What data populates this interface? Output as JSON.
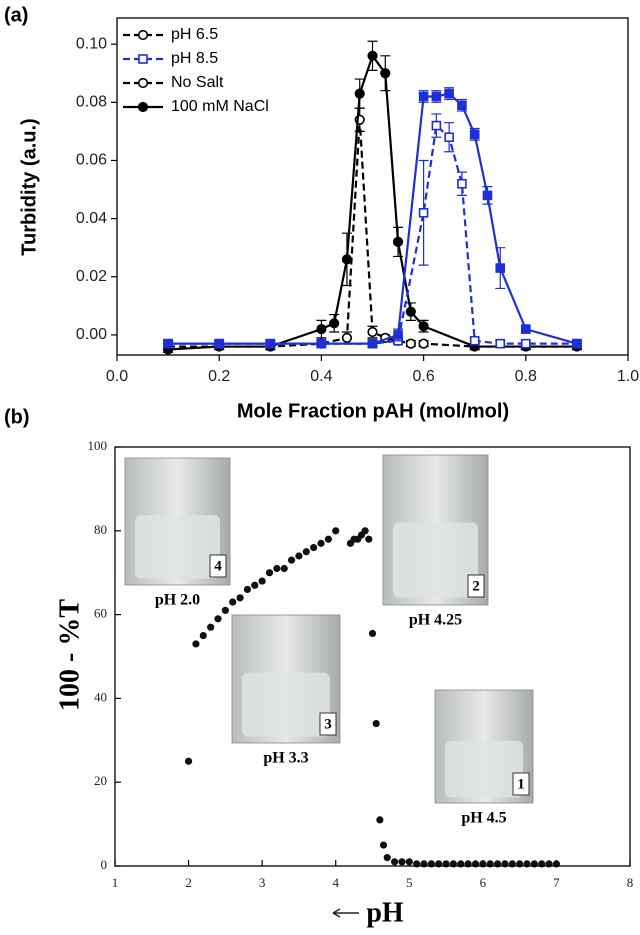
{
  "chart_data": [
    {
      "type": "line",
      "panel_label": "(a)",
      "x_label": "Mole Fraction pAH (mol/mol)",
      "y_label": "Turbidity (a.u.)",
      "xlim": [
        0,
        1
      ],
      "ylim": [
        -0.0069,
        0.109
      ],
      "xticks": [
        {
          "value": 0,
          "label": "0.0"
        },
        0.2,
        0.4,
        0.6,
        0.8,
        {
          "value": 1,
          "label": "1.0"
        }
      ],
      "yticks": [
        {
          "value": 0,
          "label": "0.00"
        },
        0.02,
        0.04,
        0.06,
        0.08,
        {
          "value": 0.1,
          "label": "0.10"
        }
      ],
      "legend": [
        {
          "name": "pH 6.5",
          "color": "#000000",
          "dash": true,
          "marker": "circle",
          "filled": false
        },
        {
          "name": "pH 8.5",
          "color": "#1f2fd6",
          "dash": true,
          "marker": "square",
          "filled": false
        },
        {
          "name": "No Salt",
          "color": "#000000",
          "dash": true,
          "marker": "circle",
          "filled": false
        },
        {
          "name": "100 mM NaCl",
          "color": "#000000",
          "dash": false,
          "marker": "circle",
          "filled": true
        }
      ],
      "series": [
        {
          "color": "#000000",
          "dash": true,
          "marker": "circle",
          "filled": false,
          "x": [
            0.1,
            0.2,
            0.3,
            0.4,
            0.45,
            0.475,
            0.5,
            0.525,
            0.55,
            0.575,
            0.6,
            0.7,
            0.8,
            0.9
          ],
          "values": [
            -0.004,
            -0.004,
            -0.004,
            -0.003,
            -0.001,
            0.074,
            0.001,
            -0.001,
            -0.002,
            -0.003,
            -0.003,
            -0.004,
            -0.004,
            -0.004
          ],
          "errors": [
            0.001,
            0.001,
            0.001,
            0.001,
            0.002,
            0.004,
            0.002,
            0.001,
            0.001,
            0.001,
            0.001,
            0.001,
            0.001,
            0.001
          ]
        },
        {
          "color": "#000000",
          "dash": false,
          "marker": "circle",
          "filled": true,
          "x": [
            0.1,
            0.2,
            0.3,
            0.4,
            0.425,
            0.45,
            0.475,
            0.5,
            0.525,
            0.55,
            0.575,
            0.6,
            0.7,
            0.8,
            0.9
          ],
          "values": [
            -0.005,
            -0.004,
            -0.004,
            0.002,
            0.004,
            0.026,
            0.083,
            0.096,
            0.09,
            0.032,
            0.008,
            0.003,
            -0.004,
            -0.004,
            -0.004
          ],
          "errors": [
            0.001,
            0.001,
            0.001,
            0.003,
            0.003,
            0.009,
            0.005,
            0.005,
            0.006,
            0.005,
            0.003,
            0.002,
            0.001,
            0.001,
            0.001
          ]
        },
        {
          "color": "#1f2fd6",
          "dash": true,
          "marker": "square",
          "filled": false,
          "x": [
            0.1,
            0.2,
            0.3,
            0.4,
            0.5,
            0.55,
            0.6,
            0.625,
            0.65,
            0.675,
            0.7,
            0.75,
            0.8,
            0.9
          ],
          "values": [
            -0.003,
            -0.003,
            -0.003,
            -0.003,
            -0.003,
            -0.002,
            0.042,
            0.072,
            0.068,
            0.052,
            -0.002,
            -0.003,
            -0.003,
            -0.003
          ],
          "errors": [
            0.001,
            0.001,
            0.001,
            0.001,
            0.001,
            0.001,
            0.018,
            0.004,
            0.005,
            0.004,
            0.001,
            0.001,
            0.001,
            0.001
          ]
        },
        {
          "color": "#1f2fd6",
          "dash": false,
          "marker": "square",
          "filled": true,
          "x": [
            0.1,
            0.2,
            0.3,
            0.4,
            0.5,
            0.55,
            0.6,
            0.625,
            0.65,
            0.675,
            0.7,
            0.725,
            0.75,
            0.8,
            0.9
          ],
          "values": [
            -0.003,
            -0.003,
            -0.003,
            -0.003,
            -0.003,
            0.0,
            0.082,
            0.082,
            0.083,
            0.079,
            0.069,
            0.048,
            0.023,
            0.002,
            -0.003
          ],
          "errors": [
            0.001,
            0.001,
            0.001,
            0.001,
            0.001,
            0.002,
            0.002,
            0.002,
            0.002,
            0.002,
            0.002,
            0.003,
            0.007,
            0.001,
            0.001
          ]
        }
      ]
    },
    {
      "type": "scatter",
      "panel_label": "(b)",
      "x_label": "pH",
      "y_label": "100 - %T",
      "xlim": [
        1,
        8
      ],
      "ylim": [
        0,
        100
      ],
      "xticks": [
        1,
        2,
        3,
        4,
        5,
        6,
        7,
        8
      ],
      "yticks": [
        0,
        20,
        40,
        60,
        80,
        100
      ],
      "color": "#111111",
      "x": [
        2.0,
        2.1,
        2.2,
        2.3,
        2.4,
        2.5,
        2.6,
        2.7,
        2.8,
        2.9,
        3.0,
        3.1,
        3.2,
        3.3,
        3.4,
        3.5,
        3.6,
        3.7,
        3.8,
        3.9,
        4.0,
        4.2,
        4.25,
        4.3,
        4.35,
        4.4,
        4.45,
        4.5,
        4.55,
        4.6,
        4.65,
        4.7,
        4.8,
        4.9,
        5.0,
        5.1,
        5.2,
        5.3,
        5.4,
        5.5,
        5.6,
        5.7,
        5.8,
        5.9,
        6.0,
        6.1,
        6.2,
        6.3,
        6.4,
        6.5,
        6.6,
        6.7,
        6.8,
        6.9,
        7.0
      ],
      "values": [
        25,
        53,
        55,
        57,
        59,
        61,
        63,
        64,
        66,
        67,
        68,
        70,
        71,
        71,
        73,
        74,
        75,
        76,
        77,
        78,
        80,
        77,
        78,
        78,
        79,
        80,
        78,
        55.5,
        34,
        11,
        5,
        2,
        1,
        1,
        1,
        0.5,
        0.5,
        0.5,
        0.5,
        0.5,
        0.5,
        0.5,
        0.5,
        0.5,
        0.5,
        0.5,
        0.5,
        0.5,
        0.5,
        0.5,
        0.5,
        0.5,
        0.5,
        0.5,
        0.5
      ],
      "insets": [
        {
          "number": "4",
          "label": "pH 2.0"
        },
        {
          "number": "2",
          "label": "pH 4.25"
        },
        {
          "number": "3",
          "label": "pH 3.3"
        },
        {
          "number": "1",
          "label": "pH 4.5"
        }
      ]
    }
  ]
}
